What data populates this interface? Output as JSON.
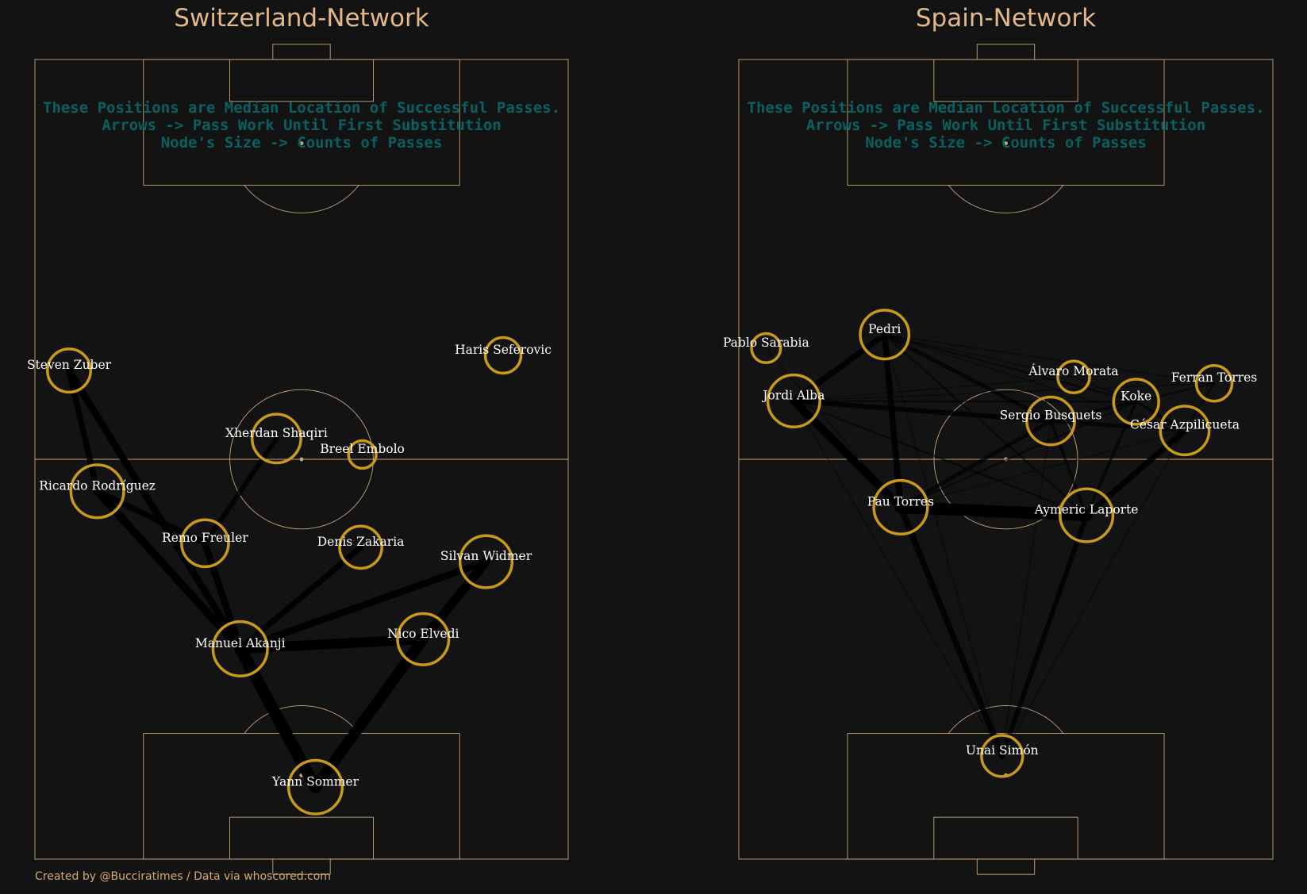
{
  "colors": {
    "background": "#131313",
    "pitch_line": "#c7a37a",
    "title": "#e2b88a",
    "note": "#0a6060",
    "node": "#c99a1a",
    "edge": "#000000",
    "label": "#ffffff",
    "credit": "#d9a86f"
  },
  "credit": "Created by @Bucciratimes / Data via whoscored.com",
  "chart_data": [
    {
      "type": "network",
      "title": "Switzerland-Network",
      "notes": [
        "These Positions are Median Location of Successful Passes.",
        "Arrows -> Pass Work Until First Substitution",
        "Node's Size -> Counts of Passes"
      ],
      "axes": {
        "x_range": [
          0,
          100
        ],
        "y_range": [
          0,
          100
        ],
        "grid": false
      },
      "players": [
        {
          "name": "Steven Zuber",
          "x": 6.4,
          "y": 61.1,
          "passes": 22
        },
        {
          "name": "Haris Seferovic",
          "x": 87.8,
          "y": 63.0,
          "passes": 15
        },
        {
          "name": "Xherdan Shaqiri",
          "x": 45.3,
          "y": 52.6,
          "passes": 28
        },
        {
          "name": "Breel Embolo",
          "x": 61.4,
          "y": 50.6,
          "passes": 9
        },
        {
          "name": "Ricardo Rodríguez",
          "x": 11.7,
          "y": 46.0,
          "passes": 33
        },
        {
          "name": "Remo Freuler",
          "x": 31.9,
          "y": 39.5,
          "passes": 26
        },
        {
          "name": "Denis Zakaria",
          "x": 61.1,
          "y": 39.0,
          "passes": 21
        },
        {
          "name": "Silvan Widmer",
          "x": 84.6,
          "y": 37.2,
          "passes": 32
        },
        {
          "name": "Nico Elvedi",
          "x": 72.8,
          "y": 27.5,
          "passes": 31
        },
        {
          "name": "Manuel Akanji",
          "x": 38.5,
          "y": 26.3,
          "passes": 35
        },
        {
          "name": "Yann Sommer",
          "x": 52.6,
          "y": 9.0,
          "passes": 34
        }
      ],
      "passes": [
        {
          "from": "Yann Sommer",
          "to": "Manuel Akanji",
          "count": 12
        },
        {
          "from": "Yann Sommer",
          "to": "Nico Elvedi",
          "count": 11
        },
        {
          "from": "Manuel Akanji",
          "to": "Nico Elvedi",
          "count": 10
        },
        {
          "from": "Manuel Akanji",
          "to": "Silvan Widmer",
          "count": 7
        },
        {
          "from": "Manuel Akanji",
          "to": "Steven Zuber",
          "count": 7
        },
        {
          "from": "Manuel Akanji",
          "to": "Ricardo Rodríguez",
          "count": 8
        },
        {
          "from": "Manuel Akanji",
          "to": "Remo Freuler",
          "count": 7
        },
        {
          "from": "Manuel Akanji",
          "to": "Denis Zakaria",
          "count": 6
        },
        {
          "from": "Nico Elvedi",
          "to": "Silvan Widmer",
          "count": 9
        },
        {
          "from": "Ricardo Rodríguez",
          "to": "Steven Zuber",
          "count": 6
        },
        {
          "from": "Ricardo Rodríguez",
          "to": "Remo Freuler",
          "count": 6
        },
        {
          "from": "Remo Freuler",
          "to": "Xherdan Shaqiri",
          "count": 5
        }
      ]
    },
    {
      "type": "network",
      "title": "Spain-Network",
      "notes": [
        "These Positions are Median Location of Successful Passes.",
        "Arrows -> Pass Work Until First Substitution",
        "Node's Size -> Counts of Passes"
      ],
      "axes": {
        "x_range": [
          0,
          100
        ],
        "y_range": [
          0,
          100
        ],
        "grid": false
      },
      "players": [
        {
          "name": "Pedri",
          "x": 27.3,
          "y": 65.6,
          "passes": 28
        },
        {
          "name": "Pablo Sarabia",
          "x": 5.1,
          "y": 63.9,
          "passes": 10
        },
        {
          "name": "Jordi Alba",
          "x": 10.3,
          "y": 57.3,
          "passes": 32
        },
        {
          "name": "Álvaro Morata",
          "x": 62.7,
          "y": 60.3,
          "passes": 12
        },
        {
          "name": "Ferran Torres",
          "x": 89.0,
          "y": 59.5,
          "passes": 15
        },
        {
          "name": "Koke",
          "x": 74.4,
          "y": 57.2,
          "passes": 24
        },
        {
          "name": "Sergio Busquets",
          "x": 58.4,
          "y": 54.8,
          "passes": 27
        },
        {
          "name": "César Azpilicueta",
          "x": 83.5,
          "y": 53.6,
          "passes": 28
        },
        {
          "name": "Pau Torres",
          "x": 30.3,
          "y": 44.0,
          "passes": 34
        },
        {
          "name": "Aymeric Laporte",
          "x": 65.1,
          "y": 43.0,
          "passes": 33
        },
        {
          "name": "Unai Simón",
          "x": 49.3,
          "y": 12.9,
          "passes": 20
        }
      ],
      "passes": [
        {
          "from": "Pau Torres",
          "to": "Aymeric Laporte",
          "count": 12
        },
        {
          "from": "Pau Torres",
          "to": "Jordi Alba",
          "count": 8
        },
        {
          "from": "Pedri",
          "to": "Jordi Alba",
          "count": 6
        },
        {
          "from": "Pedri",
          "to": "Pau Torres",
          "count": 6
        },
        {
          "from": "Pedri",
          "to": "Sergio Busquets",
          "count": 4
        },
        {
          "from": "Pedri",
          "to": "Koke",
          "count": 2
        },
        {
          "from": "Pedri",
          "to": "Álvaro Morata",
          "count": 1
        },
        {
          "from": "Pedri",
          "to": "Ferran Torres",
          "count": 1
        },
        {
          "from": "Pedri",
          "to": "Aymeric Laporte",
          "count": 2
        },
        {
          "from": "Pedri",
          "to": "César Azpilicueta",
          "count": 1
        },
        {
          "from": "Jordi Alba",
          "to": "Sergio Busquets",
          "count": 5
        },
        {
          "from": "Jordi Alba",
          "to": "Koke",
          "count": 2
        },
        {
          "from": "Jordi Alba",
          "to": "Álvaro Morata",
          "count": 1
        },
        {
          "from": "Jordi Alba",
          "to": "Ferran Torres",
          "count": 1
        },
        {
          "from": "Jordi Alba",
          "to": "Unai Simón",
          "count": 1
        },
        {
          "from": "Pablo Sarabia",
          "to": "Pau Torres",
          "count": 1
        },
        {
          "from": "Sergio Busquets",
          "to": "Pau Torres",
          "count": 4
        },
        {
          "from": "Sergio Busquets",
          "to": "Aymeric Laporte",
          "count": 3
        },
        {
          "from": "Sergio Busquets",
          "to": "Koke",
          "count": 3
        },
        {
          "from": "Sergio Busquets",
          "to": "César Azpilicueta",
          "count": 4
        },
        {
          "from": "Sergio Busquets",
          "to": "Unai Simón",
          "count": 1
        },
        {
          "from": "Aymeric Laporte",
          "to": "César Azpilicueta",
          "count": 6
        },
        {
          "from": "Aymeric Laporte",
          "to": "Koke",
          "count": 3
        },
        {
          "from": "Aymeric Laporte",
          "to": "Unai Simón",
          "count": 5
        },
        {
          "from": "Aymeric Laporte",
          "to": "Jordi Alba",
          "count": 2
        },
        {
          "from": "Pau Torres",
          "to": "Unai Simón",
          "count": 6
        },
        {
          "from": "Pau Torres",
          "to": "Koke",
          "count": 2
        },
        {
          "from": "Pau Torres",
          "to": "César Azpilicueta",
          "count": 1
        },
        {
          "from": "Koke",
          "to": "César Azpilicueta",
          "count": 3
        },
        {
          "from": "Koke",
          "to": "Ferran Torres",
          "count": 2
        },
        {
          "from": "Koke",
          "to": "Álvaro Morata",
          "count": 1
        },
        {
          "from": "Ferran Torres",
          "to": "César Azpilicueta",
          "count": 2
        },
        {
          "from": "Unai Simón",
          "to": "Pedri",
          "count": 1
        },
        {
          "from": "Unai Simón",
          "to": "César Azpilicueta",
          "count": 1
        }
      ]
    }
  ]
}
